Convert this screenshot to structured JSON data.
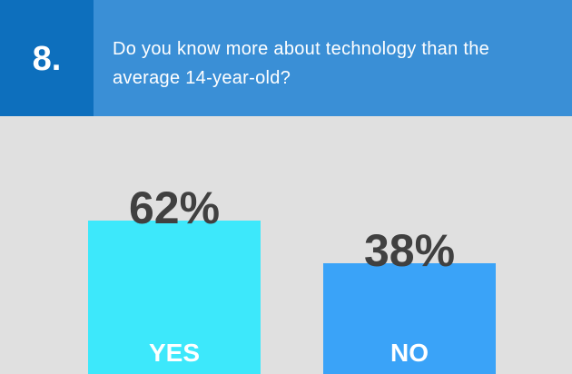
{
  "chart_data": {
    "type": "bar",
    "number": "8.",
    "title": "Do you know more about technology than the average 14-year-old?",
    "categories": [
      "YES",
      "NO"
    ],
    "values": [
      62,
      38
    ],
    "value_labels": [
      "62%",
      "38%"
    ],
    "colors": [
      "#3de8fb",
      "#3aa3f8"
    ]
  }
}
